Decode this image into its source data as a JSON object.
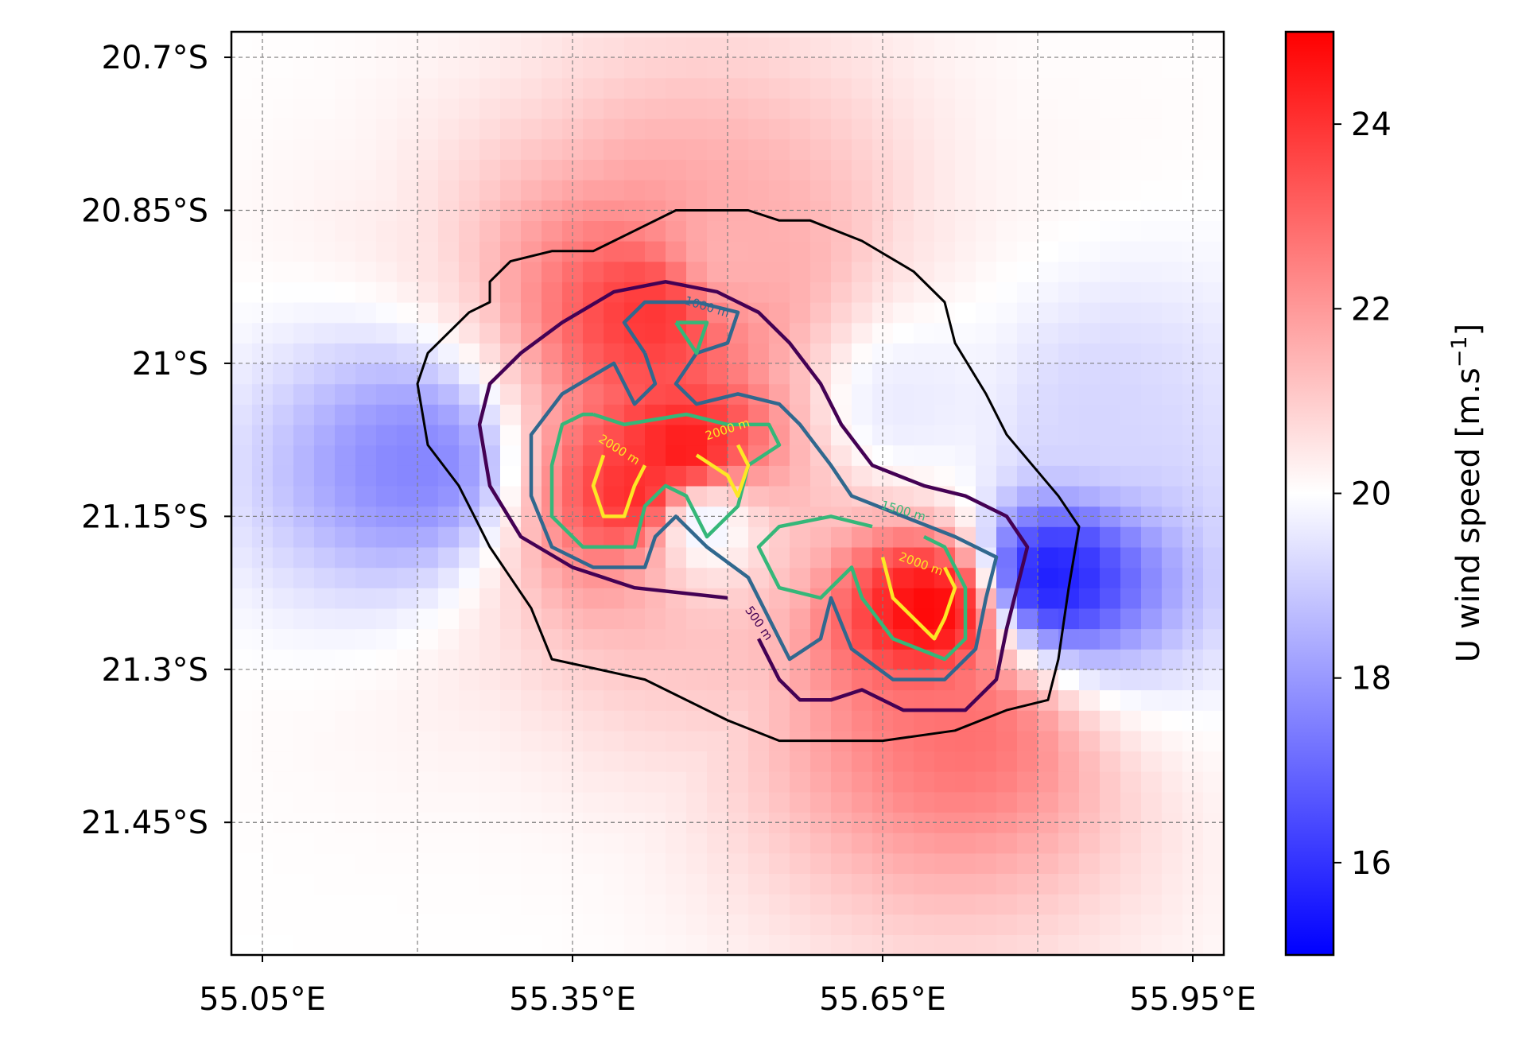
{
  "chart_data": {
    "type": "heatmap",
    "title": "",
    "x_tick_labels": [
      "55.05°E",
      "55.35°E",
      "55.65°E",
      "55.95°E"
    ],
    "x_ticks": [
      55.05,
      55.35,
      55.65,
      55.95
    ],
    "x_minor_gridlines": [
      55.05,
      55.2,
      55.35,
      55.5,
      55.65,
      55.8,
      55.95
    ],
    "xlim": [
      55.02,
      55.98
    ],
    "y_tick_labels": [
      "20.7°S",
      "20.85°S",
      "21°S",
      "21.15°S",
      "21.3°S",
      "21.45°S"
    ],
    "y_ticks": [
      -20.7,
      -20.85,
      -21.0,
      -21.15,
      -21.3,
      -21.45
    ],
    "ylim": [
      -21.58,
      -20.675
    ],
    "grid": true,
    "colorbar": {
      "label": "U wind speed [m.s",
      "label_sup": "−1",
      "label_end": "]",
      "min": 15,
      "max": 25,
      "center": 20,
      "ticks": [
        16,
        18,
        20,
        22,
        24
      ],
      "tick_labels": [
        "16",
        "18",
        "20",
        "22",
        "24"
      ],
      "colormap": "bwr",
      "low_color": "#0000ff",
      "mid_color": "#ffffff",
      "high_color": "#ff0000"
    },
    "field_features": [
      {
        "kind": "max",
        "lon": 55.46,
        "lat": -21.09,
        "value": 24.8
      },
      {
        "kind": "max",
        "lon": 55.42,
        "lat": -21.13,
        "value": 24.5
      },
      {
        "kind": "max",
        "lon": 55.7,
        "lat": -21.24,
        "value": 25.0
      },
      {
        "kind": "max",
        "lon": 55.43,
        "lat": -20.95,
        "value": 24.0
      },
      {
        "kind": "max",
        "lon": 55.73,
        "lat": -21.36,
        "value": 22.8
      },
      {
        "kind": "max",
        "lon": 55.5,
        "lat": -20.9,
        "value": 21.5
      },
      {
        "kind": "min",
        "lon": 55.81,
        "lat": -21.21,
        "value": 15.5
      },
      {
        "kind": "min",
        "lon": 55.2,
        "lat": -21.1,
        "value": 17.6
      },
      {
        "kind": "min",
        "lon": 55.47,
        "lat": -21.15,
        "value": 19.0
      },
      {
        "kind": "min",
        "lon": 55.86,
        "lat": -21.05,
        "value": 19.2
      },
      {
        "kind": "min",
        "lon": 55.67,
        "lat": -21.04,
        "value": 19.6
      }
    ],
    "contours": [
      {
        "level": "coast",
        "label": "",
        "color": "#000000",
        "points": [
          [
            55.41,
            -20.87
          ],
          [
            55.45,
            -20.85
          ],
          [
            55.52,
            -20.85
          ],
          [
            55.55,
            -20.86
          ],
          [
            55.58,
            -20.86
          ],
          [
            55.63,
            -20.88
          ],
          [
            55.68,
            -20.91
          ],
          [
            55.71,
            -20.94
          ],
          [
            55.72,
            -20.98
          ],
          [
            55.75,
            -21.03
          ],
          [
            55.77,
            -21.07
          ],
          [
            55.82,
            -21.13
          ],
          [
            55.84,
            -21.16
          ],
          [
            55.83,
            -21.22
          ],
          [
            55.82,
            -21.29
          ],
          [
            55.81,
            -21.33
          ],
          [
            55.77,
            -21.34
          ],
          [
            55.72,
            -21.36
          ],
          [
            55.65,
            -21.37
          ],
          [
            55.55,
            -21.37
          ],
          [
            55.5,
            -21.35
          ],
          [
            55.42,
            -21.31
          ],
          [
            55.33,
            -21.29
          ],
          [
            55.31,
            -21.24
          ],
          [
            55.27,
            -21.18
          ],
          [
            55.24,
            -21.12
          ],
          [
            55.21,
            -21.08
          ],
          [
            55.2,
            -21.02
          ],
          [
            55.21,
            -20.99
          ],
          [
            55.25,
            -20.95
          ],
          [
            55.27,
            -20.94
          ],
          [
            55.27,
            -20.92
          ],
          [
            55.29,
            -20.9
          ],
          [
            55.33,
            -20.89
          ],
          [
            55.37,
            -20.89
          ],
          [
            55.41,
            -20.87
          ]
        ]
      },
      {
        "level": 500,
        "label": "500 m",
        "color": "#440154",
        "points": [
          [
            55.5,
            -21.23
          ],
          [
            55.41,
            -21.22
          ],
          [
            55.35,
            -21.2
          ],
          [
            55.3,
            -21.17
          ],
          [
            55.27,
            -21.12
          ],
          [
            55.26,
            -21.06
          ],
          [
            55.27,
            -21.02
          ],
          [
            55.3,
            -20.99
          ],
          [
            55.34,
            -20.96
          ],
          [
            55.39,
            -20.93
          ],
          [
            55.44,
            -20.92
          ],
          [
            55.49,
            -20.93
          ],
          [
            55.53,
            -20.95
          ],
          [
            55.56,
            -20.98
          ],
          [
            55.59,
            -21.02
          ],
          [
            55.61,
            -21.06
          ],
          [
            55.64,
            -21.1
          ],
          [
            55.69,
            -21.12
          ],
          [
            55.73,
            -21.13
          ],
          [
            55.77,
            -21.15
          ],
          [
            55.79,
            -21.18
          ],
          [
            55.78,
            -21.22
          ],
          [
            55.77,
            -21.26
          ],
          [
            55.76,
            -21.31
          ],
          [
            55.73,
            -21.34
          ],
          [
            55.67,
            -21.34
          ],
          [
            55.63,
            -21.32
          ],
          [
            55.6,
            -21.33
          ],
          [
            55.57,
            -21.33
          ],
          [
            55.55,
            -21.31
          ],
          [
            55.53,
            -21.27
          ]
        ]
      },
      {
        "level": 1000,
        "label": "1000 m",
        "color": "#31688e",
        "points": [
          [
            55.42,
            -20.99
          ],
          [
            55.4,
            -20.96
          ],
          [
            55.42,
            -20.94
          ],
          [
            55.47,
            -20.94
          ],
          [
            55.51,
            -20.95
          ],
          [
            55.5,
            -20.98
          ],
          [
            55.47,
            -20.99
          ],
          [
            55.45,
            -21.02
          ],
          [
            55.47,
            -21.04
          ],
          [
            55.51,
            -21.03
          ],
          [
            55.55,
            -21.04
          ],
          [
            55.57,
            -21.06
          ],
          [
            55.6,
            -21.1
          ],
          [
            55.62,
            -21.13
          ],
          [
            55.67,
            -21.15
          ],
          [
            55.72,
            -21.17
          ],
          [
            55.76,
            -21.19
          ],
          [
            55.75,
            -21.23
          ],
          [
            55.74,
            -21.28
          ],
          [
            55.71,
            -21.31
          ],
          [
            55.66,
            -21.31
          ],
          [
            55.62,
            -21.28
          ],
          [
            55.6,
            -21.23
          ],
          [
            55.59,
            -21.27
          ],
          [
            55.56,
            -21.29
          ],
          [
            55.54,
            -21.25
          ],
          [
            55.52,
            -21.21
          ],
          [
            55.48,
            -21.18
          ],
          [
            55.45,
            -21.15
          ],
          [
            55.43,
            -21.17
          ],
          [
            55.42,
            -21.2
          ],
          [
            55.37,
            -21.2
          ],
          [
            55.33,
            -21.18
          ],
          [
            55.31,
            -21.13
          ],
          [
            55.31,
            -21.07
          ],
          [
            55.34,
            -21.03
          ],
          [
            55.39,
            -21.0
          ],
          [
            55.41,
            -21.04
          ],
          [
            55.43,
            -21.02
          ],
          [
            55.42,
            -20.99
          ]
        ]
      },
      {
        "level": 1500,
        "label": "1500 m",
        "color": "#35b779",
        "points": [
          [
            55.45,
            -20.96
          ],
          [
            55.48,
            -20.96
          ],
          [
            55.47,
            -20.99
          ],
          [
            55.45,
            -20.96
          ]
        ]
      },
      {
        "level": 1500,
        "label": "1500 m",
        "color": "#35b779",
        "points": [
          [
            55.37,
            -21.05
          ],
          [
            55.4,
            -21.06
          ],
          [
            55.46,
            -21.05
          ],
          [
            55.5,
            -21.06
          ],
          [
            55.54,
            -21.06
          ],
          [
            55.55,
            -21.08
          ],
          [
            55.52,
            -21.1
          ],
          [
            55.51,
            -21.14
          ],
          [
            55.48,
            -21.17
          ],
          [
            55.46,
            -21.13
          ],
          [
            55.44,
            -21.12
          ],
          [
            55.42,
            -21.14
          ],
          [
            55.41,
            -21.18
          ],
          [
            55.36,
            -21.18
          ],
          [
            55.33,
            -21.15
          ],
          [
            55.33,
            -21.1
          ],
          [
            55.34,
            -21.06
          ],
          [
            55.36,
            -21.05
          ],
          [
            55.37,
            -21.05
          ]
        ]
      },
      {
        "level": 1500,
        "label": "1500 m",
        "color": "#35b779",
        "points": [
          [
            55.64,
            -21.16
          ],
          [
            55.6,
            -21.15
          ],
          [
            55.55,
            -21.16
          ],
          [
            55.53,
            -21.18
          ],
          [
            55.55,
            -21.22
          ],
          [
            55.59,
            -21.23
          ],
          [
            55.62,
            -21.2
          ],
          [
            55.63,
            -21.23
          ],
          [
            55.66,
            -21.27
          ],
          [
            55.71,
            -21.29
          ],
          [
            55.73,
            -21.27
          ],
          [
            55.73,
            -21.22
          ],
          [
            55.71,
            -21.18
          ],
          [
            55.69,
            -21.17
          ]
        ]
      },
      {
        "level": 2000,
        "label": "2000 m",
        "color": "#fde725",
        "points": [
          [
            55.38,
            -21.09
          ],
          [
            55.37,
            -21.12
          ],
          [
            55.38,
            -21.15
          ],
          [
            55.4,
            -21.15
          ],
          [
            55.41,
            -21.12
          ],
          [
            55.42,
            -21.1
          ]
        ]
      },
      {
        "level": 2000,
        "label": "2000 m",
        "color": "#fde725",
        "points": [
          [
            55.47,
            -21.09
          ],
          [
            55.5,
            -21.11
          ],
          [
            55.51,
            -21.13
          ],
          [
            55.52,
            -21.1
          ],
          [
            55.51,
            -21.08
          ]
        ]
      },
      {
        "level": 2000,
        "label": "2000 m",
        "color": "#fde725",
        "points": [
          [
            55.65,
            -21.19
          ],
          [
            55.66,
            -21.23
          ],
          [
            55.69,
            -21.26
          ],
          [
            55.7,
            -21.27
          ],
          [
            55.71,
            -21.25
          ],
          [
            55.72,
            -21.22
          ],
          [
            55.71,
            -21.2
          ]
        ]
      }
    ],
    "contour_labels": [
      {
        "text": "500 m",
        "lon": 55.53,
        "lat": -21.255,
        "angle": 55,
        "color": "#440154"
      },
      {
        "text": "1000 m",
        "lon": 55.48,
        "lat": -20.945,
        "angle": 17,
        "color": "#31688e"
      },
      {
        "text": "1500 m",
        "lon": 55.67,
        "lat": -21.145,
        "angle": 16,
        "color": "#35b779"
      },
      {
        "text": "2000 m",
        "lon": 55.5,
        "lat": -21.065,
        "angle": -18,
        "color": "#fde725"
      },
      {
        "text": "2000 m",
        "lon": 55.395,
        "lat": -21.085,
        "angle": 32,
        "color": "#fde725"
      },
      {
        "text": "2000 m",
        "lon": 55.687,
        "lat": -21.197,
        "angle": 20,
        "color": "#fde725"
      }
    ]
  }
}
